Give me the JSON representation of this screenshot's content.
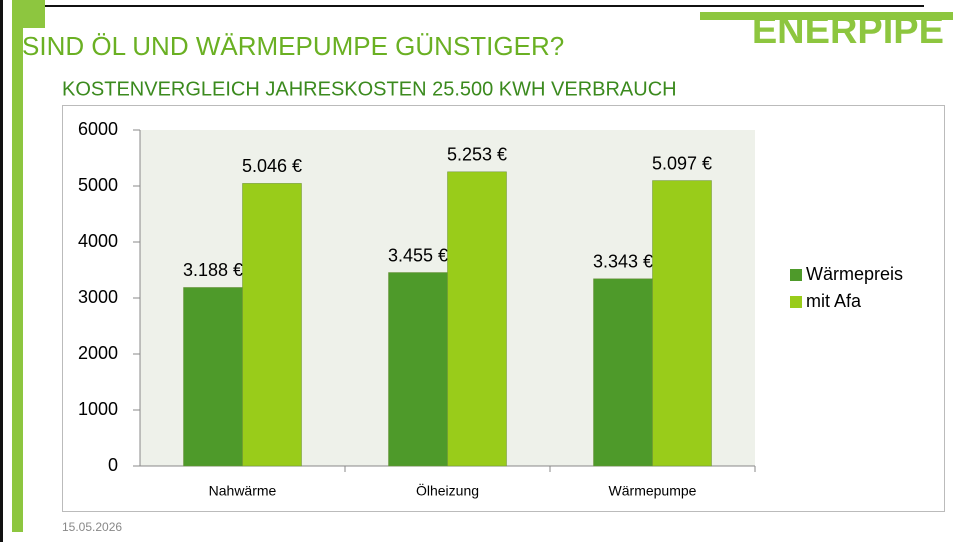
{
  "header": {
    "title": "SIND ÖL UND WÄRMEPUMPE GÜNSTIGER?",
    "subtitle": "KOSTENVERGLEICH JAHRESKOSTEN 25.500 KWH VERBRAUCH",
    "logo": "ENERPIPE"
  },
  "chart_data": {
    "type": "bar",
    "categories": [
      "Nahwärme",
      "Ölheizung",
      "Wärmepumpe"
    ],
    "series": [
      {
        "name": "Wärmepreis",
        "color": "#4e9a2a",
        "values": [
          3188,
          3455,
          3343
        ],
        "value_labels": [
          "3.188 €",
          "3.455 €",
          "3.343 €"
        ]
      },
      {
        "name": "mit Afa",
        "color": "#99cc1a",
        "values": [
          5046,
          5253,
          5097
        ],
        "value_labels": [
          "5.046 €",
          "5.253 €",
          "5.097 €"
        ]
      }
    ],
    "ylim": [
      0,
      6000
    ],
    "yticks": [
      0,
      1000,
      2000,
      3000,
      4000,
      5000,
      6000
    ],
    "grid": false,
    "legend": "right"
  },
  "footer": {
    "date": "15.05.2026"
  }
}
